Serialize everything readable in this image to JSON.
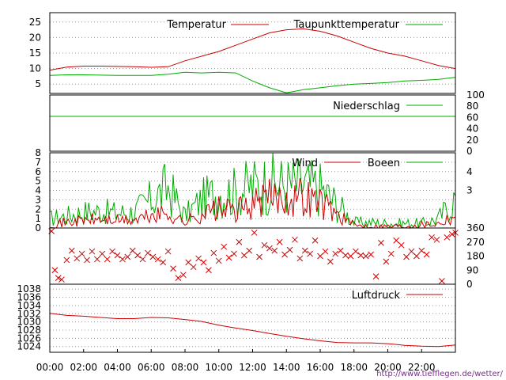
{
  "source_url": "http://www.tiefflegen.de/wetter/",
  "time_axis": {
    "ticks": [
      "00:00",
      "02:00",
      "04:00",
      "06:00",
      "08:00",
      "10:00",
      "12:00",
      "14:00",
      "16:00",
      "18:00",
      "20:00",
      "22:00"
    ],
    "range_hours": [
      0,
      24
    ]
  },
  "colors": {
    "red": "#cc0000",
    "green": "#00aa00",
    "grid": "#999999"
  },
  "chart_data": [
    {
      "type": "line",
      "panel": "temperature",
      "yticks": [
        "5",
        "10",
        "15",
        "20",
        "25"
      ],
      "ylim": [
        2,
        28
      ],
      "grid": true,
      "legend_placement": "top-right",
      "x_hours": [
        0,
        1,
        2,
        3,
        4,
        5,
        6,
        7,
        8,
        9,
        10,
        11,
        12,
        13,
        14,
        15,
        16,
        17,
        18,
        19,
        20,
        21,
        22,
        23,
        24
      ],
      "series": [
        {
          "name": "Temperatur",
          "color": "#cc0000",
          "values": [
            9.5,
            10.5,
            10.8,
            10.8,
            10.7,
            10.6,
            10.4,
            10.6,
            12.5,
            14,
            15.5,
            17.5,
            19.5,
            21.5,
            22.5,
            22.8,
            22.0,
            20.5,
            18.5,
            16.5,
            15.0,
            14.0,
            12.5,
            11.0,
            10.0
          ]
        },
        {
          "name": "Taupunkttemperatur",
          "color": "#00aa00",
          "values": [
            7.8,
            8.0,
            8.0,
            7.9,
            7.8,
            7.8,
            7.8,
            8.2,
            8.8,
            8.6,
            8.8,
            8.6,
            6.0,
            3.8,
            2.2,
            3.2,
            3.8,
            4.5,
            5.0,
            5.2,
            5.5,
            6.0,
            6.2,
            6.5,
            7.2
          ]
        }
      ]
    },
    {
      "type": "line",
      "panel": "precipitation",
      "yticks_right": [
        "0",
        "20",
        "40",
        "60",
        "80",
        "100"
      ],
      "ylim": [
        0,
        100
      ],
      "legend_placement": "top-right",
      "series": [
        {
          "name": "Niederschlag",
          "color": "#00aa00",
          "x_hours": [
            0,
            24
          ],
          "values": [
            62,
            62
          ]
        }
      ]
    },
    {
      "type": "line",
      "panel": "wind",
      "yticks_left": [
        "0",
        "1",
        "2",
        "3",
        "4",
        "5",
        "6",
        "7",
        "8"
      ],
      "ylim_left": [
        0,
        8
      ],
      "yticks_right": [
        "3",
        "4"
      ],
      "grid": true,
      "legend_placement": "top-right",
      "x_hours": [
        0,
        1,
        2,
        3,
        4,
        5,
        6,
        7,
        8,
        9,
        10,
        11,
        12,
        13,
        14,
        15,
        16,
        17,
        18,
        19,
        20,
        21,
        22,
        23,
        24
      ],
      "series": [
        {
          "name": "Wind",
          "color": "#cc0000",
          "values": [
            0.4,
            0.6,
            0.8,
            0.9,
            0.8,
            0.8,
            1.3,
            1.5,
            0.6,
            1.5,
            2.0,
            1.8,
            2.5,
            3.2,
            3.3,
            3.4,
            2.8,
            1.5,
            0.3,
            0.2,
            0.2,
            0.2,
            0.4,
            0.5,
            1.5
          ]
        },
        {
          "name": "Boeen",
          "color": "#00aa00",
          "values": [
            1.0,
            1.3,
            1.7,
            1.8,
            1.6,
            1.7,
            3.0,
            4.3,
            1.3,
            3.0,
            3.8,
            3.8,
            4.5,
            4.8,
            4.6,
            4.5,
            4.2,
            2.5,
            0.6,
            0.6,
            0.5,
            0.5,
            0.5,
            1.0,
            3.2
          ]
        }
      ]
    },
    {
      "type": "scatter",
      "panel": "wind_direction",
      "yticks_right": [
        "0",
        "90",
        "180",
        "270",
        "360"
      ],
      "ylim": [
        0,
        360
      ],
      "marker": "x",
      "color": "#cc0000",
      "points": [
        [
          0.1,
          340
        ],
        [
          0.3,
          90
        ],
        [
          0.5,
          40
        ],
        [
          0.7,
          30
        ],
        [
          1.0,
          155
        ],
        [
          1.3,
          215
        ],
        [
          1.6,
          165
        ],
        [
          1.9,
          195
        ],
        [
          2.2,
          155
        ],
        [
          2.5,
          210
        ],
        [
          2.8,
          160
        ],
        [
          3.1,
          195
        ],
        [
          3.4,
          160
        ],
        [
          3.7,
          210
        ],
        [
          4.0,
          185
        ],
        [
          4.3,
          160
        ],
        [
          4.6,
          175
        ],
        [
          4.9,
          215
        ],
        [
          5.2,
          185
        ],
        [
          5.5,
          160
        ],
        [
          5.8,
          200
        ],
        [
          6.1,
          175
        ],
        [
          6.4,
          160
        ],
        [
          6.7,
          140
        ],
        [
          7.0,
          210
        ],
        [
          7.3,
          100
        ],
        [
          7.6,
          40
        ],
        [
          7.9,
          60
        ],
        [
          8.2,
          140
        ],
        [
          8.5,
          110
        ],
        [
          8.8,
          165
        ],
        [
          9.1,
          140
        ],
        [
          9.4,
          90
        ],
        [
          9.7,
          200
        ],
        [
          10.0,
          150
        ],
        [
          10.3,
          240
        ],
        [
          10.6,
          170
        ],
        [
          10.9,
          195
        ],
        [
          11.2,
          270
        ],
        [
          11.5,
          185
        ],
        [
          11.8,
          215
        ],
        [
          12.1,
          330
        ],
        [
          12.4,
          175
        ],
        [
          12.7,
          250
        ],
        [
          13.0,
          230
        ],
        [
          13.3,
          215
        ],
        [
          13.6,
          270
        ],
        [
          13.9,
          190
        ],
        [
          14.2,
          220
        ],
        [
          14.5,
          285
        ],
        [
          14.8,
          165
        ],
        [
          15.1,
          215
        ],
        [
          15.4,
          195
        ],
        [
          15.7,
          280
        ],
        [
          16.0,
          180
        ],
        [
          16.3,
          210
        ],
        [
          16.6,
          145
        ],
        [
          16.9,
          195
        ],
        [
          17.2,
          215
        ],
        [
          17.5,
          185
        ],
        [
          17.8,
          180
        ],
        [
          18.1,
          210
        ],
        [
          18.4,
          185
        ],
        [
          18.7,
          180
        ],
        [
          19.0,
          190
        ],
        [
          19.3,
          50
        ],
        [
          19.6,
          265
        ],
        [
          19.9,
          145
        ],
        [
          20.2,
          195
        ],
        [
          20.5,
          280
        ],
        [
          20.8,
          250
        ],
        [
          21.1,
          175
        ],
        [
          21.4,
          210
        ],
        [
          21.7,
          180
        ],
        [
          22.0,
          215
        ],
        [
          22.3,
          190
        ],
        [
          22.6,
          300
        ],
        [
          22.9,
          285
        ],
        [
          23.2,
          0
        ],
        [
          23.5,
          300
        ],
        [
          23.8,
          320
        ],
        [
          24.0,
          330
        ]
      ]
    },
    {
      "type": "line",
      "panel": "pressure",
      "yticks": [
        "1024",
        "1026",
        "1028",
        "1030",
        "1032",
        "1034",
        "1036",
        "1038"
      ],
      "ylim": [
        1022.6,
        1039.2
      ],
      "grid": true,
      "legend_placement": "top-right",
      "x_hours": [
        0,
        1,
        2,
        3,
        4,
        5,
        6,
        7,
        8,
        9,
        10,
        11,
        12,
        13,
        14,
        15,
        16,
        17,
        18,
        19,
        20,
        21,
        22,
        23,
        24
      ],
      "series": [
        {
          "name": "Luftdruck",
          "color": "#cc0000",
          "values": [
            1032.1,
            1031.6,
            1031.4,
            1031.1,
            1030.8,
            1030.8,
            1031.1,
            1031.0,
            1030.6,
            1030.1,
            1029.2,
            1028.5,
            1027.9,
            1027.2,
            1026.5,
            1025.9,
            1025.4,
            1025.0,
            1024.9,
            1024.9,
            1024.7,
            1024.3,
            1024.1,
            1024.0,
            1024.4
          ]
        }
      ]
    }
  ]
}
